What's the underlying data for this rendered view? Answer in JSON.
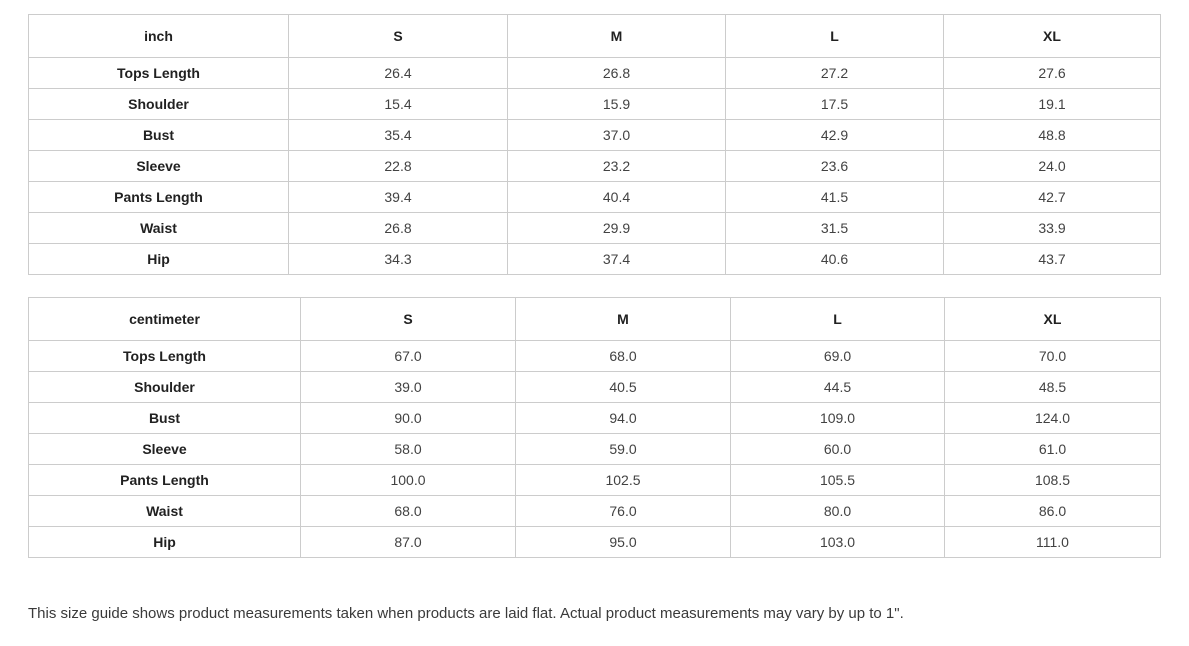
{
  "tables": [
    {
      "unit": "inch",
      "sizes": [
        "S",
        "M",
        "L",
        "XL"
      ],
      "rows": [
        {
          "label": "Tops Length",
          "values": [
            "26.4",
            "26.8",
            "27.2",
            "27.6"
          ]
        },
        {
          "label": "Shoulder",
          "values": [
            "15.4",
            "15.9",
            "17.5",
            "19.1"
          ]
        },
        {
          "label": "Bust",
          "values": [
            "35.4",
            "37.0",
            "42.9",
            "48.8"
          ]
        },
        {
          "label": "Sleeve",
          "values": [
            "22.8",
            "23.2",
            "23.6",
            "24.0"
          ]
        },
        {
          "label": "Pants Length",
          "values": [
            "39.4",
            "40.4",
            "41.5",
            "42.7"
          ]
        },
        {
          "label": "Waist",
          "values": [
            "26.8",
            "29.9",
            "31.5",
            "33.9"
          ]
        },
        {
          "label": "Hip",
          "values": [
            "34.3",
            "37.4",
            "40.6",
            "43.7"
          ]
        }
      ]
    },
    {
      "unit": "centimeter",
      "sizes": [
        "S",
        "M",
        "L",
        "XL"
      ],
      "rows": [
        {
          "label": "Tops Length",
          "values": [
            "67.0",
            "68.0",
            "69.0",
            "70.0"
          ]
        },
        {
          "label": "Shoulder",
          "values": [
            "39.0",
            "40.5",
            "44.5",
            "48.5"
          ]
        },
        {
          "label": "Bust",
          "values": [
            "90.0",
            "94.0",
            "109.0",
            "124.0"
          ]
        },
        {
          "label": "Sleeve",
          "values": [
            "58.0",
            "59.0",
            "60.0",
            "61.0"
          ]
        },
        {
          "label": "Pants Length",
          "values": [
            "100.0",
            "102.5",
            "105.5",
            "108.5"
          ]
        },
        {
          "label": "Waist",
          "values": [
            "68.0",
            "76.0",
            "80.0",
            "86.0"
          ]
        },
        {
          "label": "Hip",
          "values": [
            "87.0",
            "95.0",
            "103.0",
            "111.0"
          ]
        }
      ]
    }
  ],
  "footer": {
    "note": "This size guide shows product measurements taken when products are laid flat. Actual product measurements may vary by up to 1\"."
  },
  "colors": {
    "border": "#cccccc",
    "header_text": "#212121",
    "cell_text": "#424242",
    "background": "#ffffff"
  }
}
